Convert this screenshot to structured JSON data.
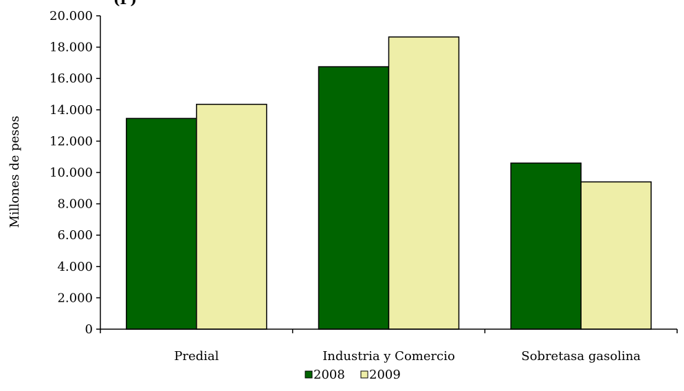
{
  "header_fragment": "(P)",
  "chart_data": {
    "type": "bar",
    "title": "",
    "xlabel": "",
    "ylabel": "Millones de pesos",
    "categories": [
      "Predial",
      "Industria y Comercio",
      "Sobretasa gasolina"
    ],
    "series": [
      {
        "name": "2008",
        "color": "#006400",
        "values": [
          13450,
          16750,
          10600
        ]
      },
      {
        "name": "2009",
        "color": "#EEEEA8",
        "values": [
          14350,
          18650,
          9400
        ]
      }
    ],
    "ylim": [
      0,
      20000
    ],
    "yticks": [
      0,
      2000,
      4000,
      6000,
      8000,
      10000,
      12000,
      14000,
      16000,
      18000,
      20000
    ],
    "ytick_labels": [
      "0",
      "2.000",
      "4.000",
      "6.000",
      "8.000",
      "10.000",
      "12.000",
      "14.000",
      "16.000",
      "18.000",
      "20.000"
    ],
    "grid": false,
    "legend_position": "bottom"
  }
}
